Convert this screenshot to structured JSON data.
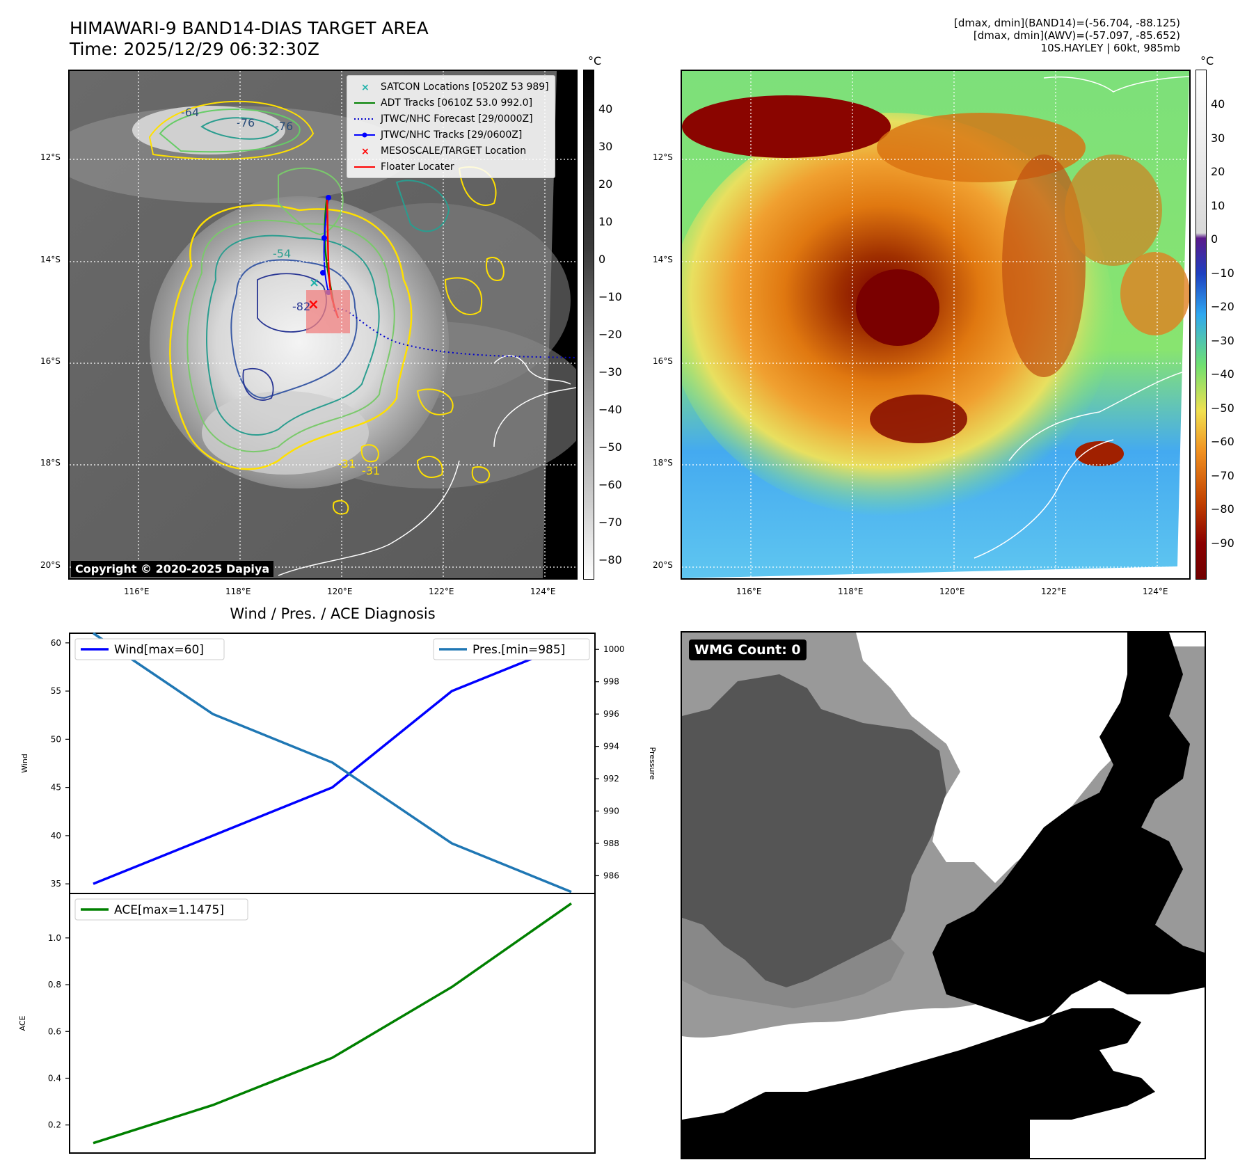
{
  "header": {
    "title": "HIMAWARI-9 BAND14-DIAS TARGET AREA",
    "time": "Time: 2025/12/29 06:32:30Z",
    "info_line1": "[dmax, dmin](BAND14)=(-56.704, -88.125)",
    "info_line2": "[dmax, dmin](AWV)=(-57.097, -85.652)",
    "info_line3": "10S.HAYLEY | 60kt, 985mb"
  },
  "maps": {
    "lat_labels": [
      "12°S",
      "14°S",
      "16°S",
      "18°S",
      "20°S"
    ],
    "lon_labels": [
      "116°E",
      "118°E",
      "120°E",
      "122°E",
      "124°E"
    ],
    "copyright": "Copyright © 2020-2025 Dapiya",
    "legend": [
      {
        "label": "SATCON Locations [0520Z 53 989]",
        "symbol": "x",
        "color": "#20b2aa"
      },
      {
        "label": "ADT Tracks [0610Z 53.0 992.0]",
        "symbol": "line",
        "color": "#008000"
      },
      {
        "label": "JTWC/NHC Forecast [29/0000Z]",
        "symbol": "dotted",
        "color": "#0000cc"
      },
      {
        "label": "JTWC/NHC Tracks [29/0600Z]",
        "symbol": "line-dot",
        "color": "#0000ff"
      },
      {
        "label": "MESOSCALE/TARGET Location",
        "symbol": "x",
        "color": "#ff0000"
      },
      {
        "label": "Floater Locater",
        "symbol": "line",
        "color": "#ff0000"
      }
    ],
    "contour_labels": [
      "-64",
      "-76",
      "-76",
      "-54",
      "-82",
      "-31",
      "-31"
    ],
    "colorbar_unit": "°C",
    "colorbar1_ticks": [
      "40",
      "30",
      "20",
      "10",
      "0",
      "−10",
      "−20",
      "−30",
      "−40",
      "−50",
      "−60",
      "−70",
      "−80"
    ],
    "colorbar2_ticks": [
      "40",
      "30",
      "20",
      "10",
      "0",
      "−10",
      "−20",
      "−30",
      "−40",
      "−50",
      "−60",
      "−70",
      "−80",
      "−90"
    ]
  },
  "wmg": {
    "badge": "WMG Count: 0"
  },
  "chart_data": [
    {
      "type": "line",
      "title": "Wind / Pres. / ACE Diagnosis",
      "x": [
        0,
        1,
        2,
        3,
        4
      ],
      "ylabel": "Wind",
      "ylim": [
        34,
        61
      ],
      "yticks": [
        35,
        40,
        45,
        50,
        55,
        60
      ],
      "y2label": "Pressure",
      "y2lim": [
        984.9,
        1001
      ],
      "y2ticks": [
        986,
        988,
        990,
        992,
        994,
        996,
        998,
        1000
      ],
      "series": [
        {
          "name": "Wind[max=60]",
          "axis": "left",
          "color": "#0000ff",
          "values": [
            35,
            40,
            45,
            55,
            60
          ]
        },
        {
          "name": "Pres.[min=985]",
          "axis": "right",
          "color": "#1f77b4",
          "values": [
            1001,
            996,
            993,
            988,
            985
          ]
        }
      ]
    },
    {
      "type": "line",
      "title": "",
      "x": [
        0,
        1,
        2,
        3,
        4
      ],
      "ylabel": "ACE",
      "ylim": [
        0.08,
        1.19
      ],
      "yticks": [
        0.2,
        0.4,
        0.6,
        0.8,
        1.0
      ],
      "series": [
        {
          "name": "ACE[max=1.1475]",
          "axis": "left",
          "color": "#008000",
          "values": [
            0.1225,
            0.285,
            0.4875,
            0.79,
            1.1475
          ]
        }
      ]
    }
  ]
}
